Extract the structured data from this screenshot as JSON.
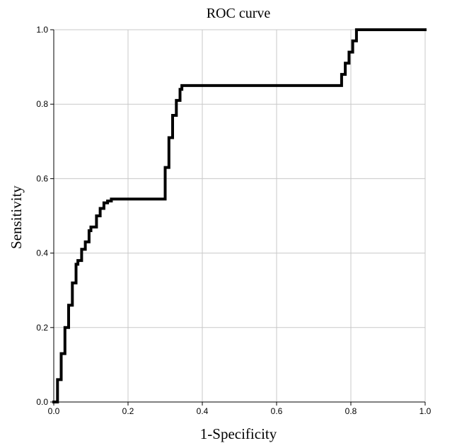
{
  "chart_data": {
    "type": "line",
    "title": "ROC curve",
    "xlabel": "1-Specificity",
    "ylabel": "Sensitivity",
    "xlim": [
      0,
      1
    ],
    "ylim": [
      0,
      1
    ],
    "x_ticks": [
      "0.0",
      "0.2",
      "0.4",
      "0.6",
      "0.8",
      "1.0"
    ],
    "y_ticks": [
      "0.0",
      "0.2",
      "0.4",
      "0.6",
      "0.8",
      "1.0"
    ],
    "grid": true,
    "line_color": "#000000",
    "series": [
      {
        "x": [
          0.0,
          0.01,
          0.02,
          0.03,
          0.04,
          0.05,
          0.06,
          0.065,
          0.075,
          0.085,
          0.095,
          0.1,
          0.115,
          0.125,
          0.135,
          0.145,
          0.155,
          0.16,
          0.29,
          0.3,
          0.31,
          0.32,
          0.33,
          0.34,
          0.345,
          0.765,
          0.775,
          0.785,
          0.795,
          0.805,
          0.815,
          1.0
        ],
        "y": [
          0.0,
          0.06,
          0.13,
          0.2,
          0.26,
          0.32,
          0.37,
          0.38,
          0.41,
          0.43,
          0.46,
          0.47,
          0.5,
          0.52,
          0.535,
          0.54,
          0.545,
          0.545,
          0.545,
          0.63,
          0.71,
          0.77,
          0.81,
          0.84,
          0.85,
          0.85,
          0.88,
          0.91,
          0.94,
          0.97,
          1.0,
          1.0
        ]
      }
    ]
  }
}
